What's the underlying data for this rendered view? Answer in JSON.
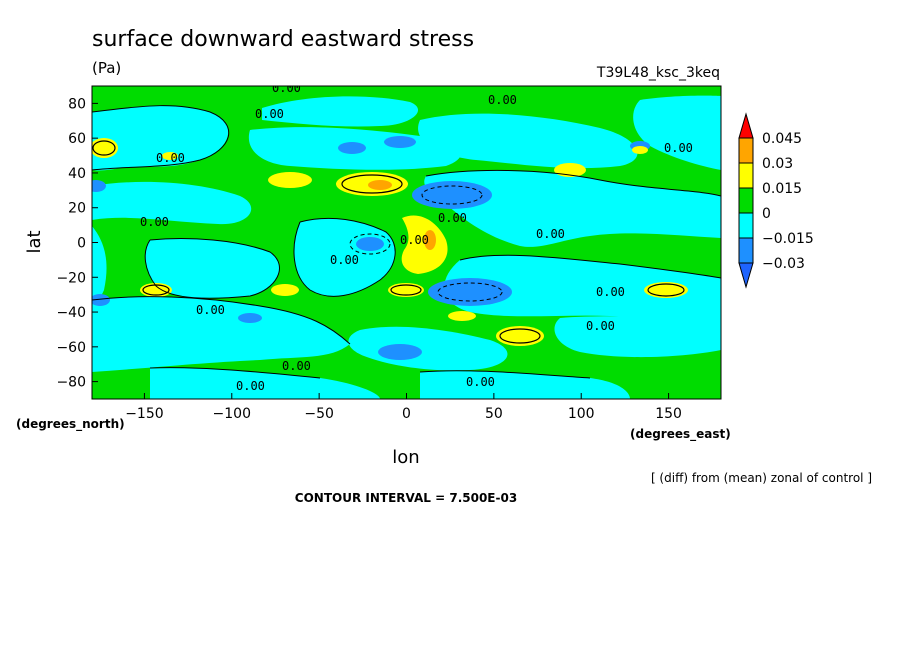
{
  "chart_data": {
    "type": "heatmap",
    "title": "surface downward eastward stress",
    "units": "(Pa)",
    "run_label": "T39L48_ksc_3keq",
    "xlabel": "lon",
    "ylabel": "lat",
    "x_units": "(degrees_east)",
    "y_units": "(degrees_north)",
    "xlim": [
      -180,
      180
    ],
    "ylim": [
      -90,
      90
    ],
    "x_ticks": [
      -150,
      -100,
      -50,
      0,
      50,
      100,
      150
    ],
    "y_ticks": [
      80,
      60,
      40,
      20,
      0,
      -20,
      -40,
      -60,
      -80
    ],
    "x_tick_labels": [
      "−150",
      "−100",
      "−50",
      "0",
      "50",
      "100",
      "150"
    ],
    "y_tick_labels": [
      "80",
      "60",
      "40",
      "20",
      "0",
      "−20",
      "−40",
      "−60",
      "−80"
    ],
    "colorbar": {
      "levels": [
        -0.03,
        -0.015,
        0,
        0.015,
        0.03,
        0.045
      ],
      "labels": [
        "−0.03",
        "−0.015",
        "0",
        "0.015",
        "0.03",
        "0.045"
      ],
      "colors": [
        "#1e90ff",
        "#00ffff",
        "#00dc00",
        "#ffff00",
        "#ffa500",
        "#ff0000"
      ]
    },
    "contour_labels": [
      "0.00",
      "0.00",
      "0.00",
      "0.00",
      "0.00",
      "0.00",
      "0.00",
      "0.00",
      "0.00",
      "0.00",
      "0.00",
      "0.00",
      "0.00",
      "0.00",
      "0.00",
      "0.00"
    ],
    "contour_interval_text": "CONTOUR INTERVAL = 7.500E-03",
    "note": "[ (diff) from (mean) zonal of control ]"
  },
  "colors": {
    "neg2": "#1e90ff",
    "neg1": "#00ffff",
    "pos1": "#00dc00",
    "pos2": "#ffff00",
    "pos3": "#ffa500",
    "pos4": "#ff0000"
  }
}
